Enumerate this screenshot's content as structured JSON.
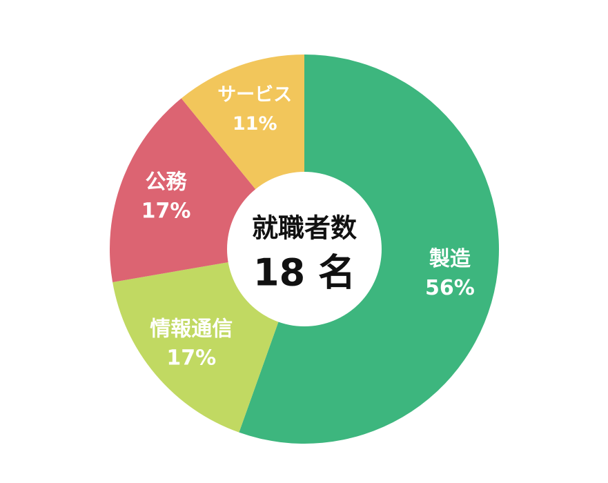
{
  "chart_data": {
    "type": "pie",
    "center_title": "就職者数",
    "center_value": "18 名",
    "slices": [
      {
        "name": "製造",
        "percent_label": "56%",
        "value": 56,
        "color": "#3db67e"
      },
      {
        "name": "情報通信",
        "percent_label": "17%",
        "value": 17,
        "color": "#c1d962"
      },
      {
        "name": "公務",
        "percent_label": "17%",
        "value": 17,
        "color": "#dc6472"
      },
      {
        "name": "サービス",
        "percent_label": "11%",
        "value": 11,
        "color": "#f2c65b"
      }
    ]
  }
}
